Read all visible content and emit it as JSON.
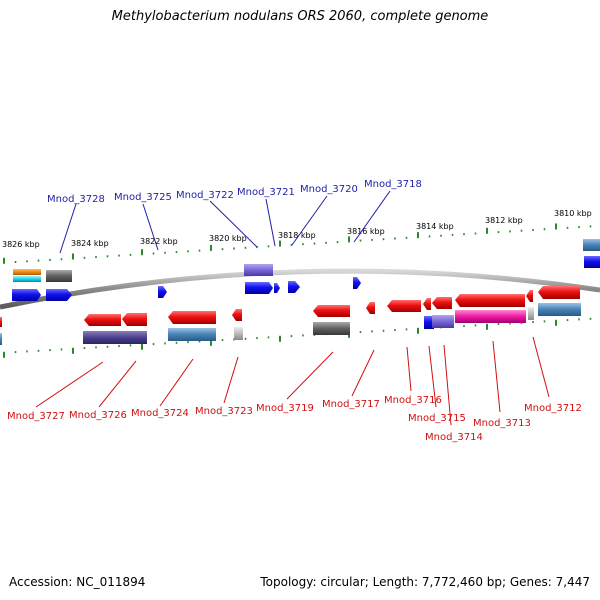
{
  "title": "Methylobacterium nodulans ORS 2060, complete genome",
  "accession": "Accession: NC_011894",
  "topology": "Topology: circular; Length: 7,772,460 bp; Genes: 7,447",
  "colors": {
    "forward_label": "#1f1fa8",
    "reverse_label": "#d01010",
    "tick": "#2a8a2a",
    "backbone": "#8c8c8c"
  },
  "kbp_ticks": [
    "3826 kbp",
    "3824 kbp",
    "3822 kbp",
    "3820 kbp",
    "3818 kbp",
    "3816 kbp",
    "3814 kbp",
    "3812 kbp",
    "3810 kbp"
  ],
  "forward_genes": [
    "Mnod_3728",
    "Mnod_3725",
    "Mnod_3722",
    "Mnod_3721",
    "Mnod_3720",
    "Mnod_3718"
  ],
  "reverse_genes": [
    "Mnod_3727",
    "Mnod_3726",
    "Mnod_3724",
    "Mnod_3723",
    "Mnod_3719",
    "Mnod_3717",
    "Mnod_3716",
    "Mnod_3715",
    "Mnod_3714",
    "Mnod_3713",
    "Mnod_3712"
  ]
}
